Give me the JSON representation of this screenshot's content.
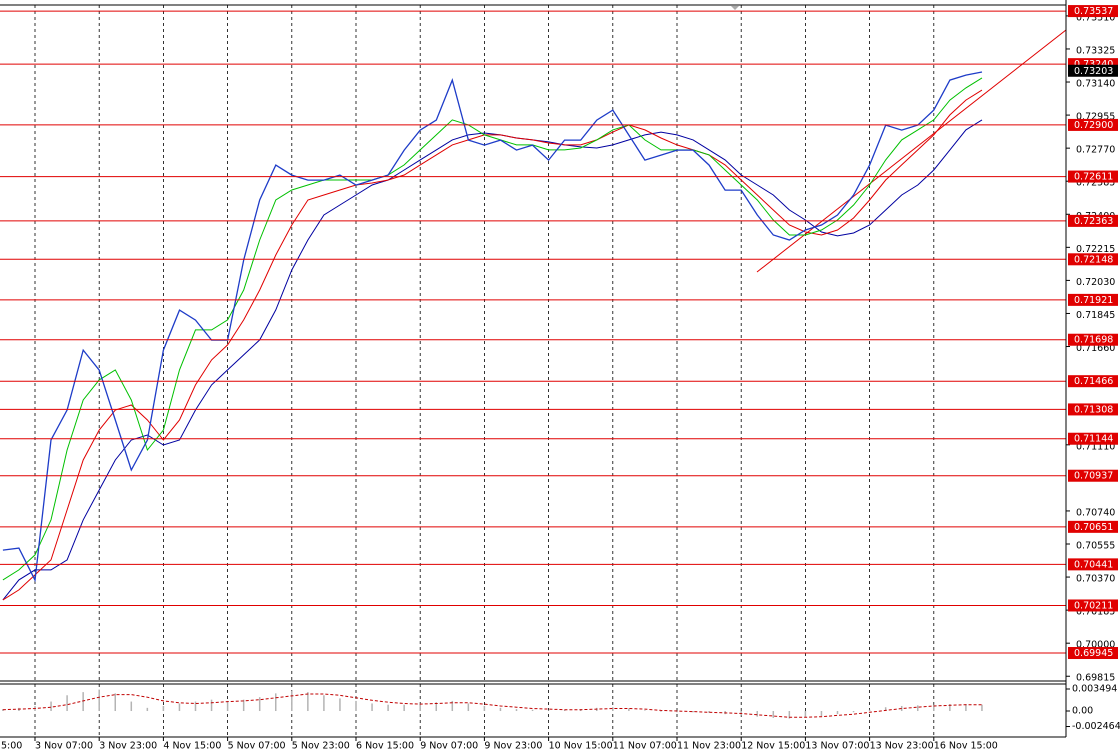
{
  "chart_data": [
    {
      "type": "line",
      "x": [
        "5:00",
        null,
        null,
        null,
        "3 Nov 07:00",
        null,
        null,
        null,
        "3 Nov 23:00",
        null,
        null,
        null,
        "4 Nov 15:00",
        null,
        null,
        null,
        "5 Nov 07:00",
        null,
        null,
        null,
        "5 Nov 23:00",
        null,
        null,
        null,
        "6 Nov 15:00",
        null,
        null,
        null,
        "9 Nov 07:00",
        null,
        null,
        null,
        "9 Nov 23:00",
        null,
        null,
        null,
        "10 Nov 15:00",
        null,
        null,
        null,
        "11 Nov 07:00",
        null,
        null,
        null,
        "11 Nov 23:00",
        null,
        null,
        null,
        "12 Nov 15:00",
        null,
        null,
        null,
        "13 Nov 07:00",
        null,
        null,
        null,
        "13 Nov 23:00",
        null,
        null,
        null,
        "16 Nov 15:00",
        null,
        null,
        null
      ],
      "series": [
        {
          "color": "#1e3cc8",
          "values": [
            null,
            null,
            0.70521,
            0.70532,
            0.70353,
            0.71137,
            0.71305,
            0.7164,
            0.71528,
            0.71249,
            0.70969,
            0.71137,
            0.7164,
            0.71864,
            0.71808,
            0.71696,
            0.71696,
            0.72144,
            0.7248,
            0.72675,
            0.72619,
            0.72591,
            0.72591,
            0.72619,
            0.72563,
            0.72591,
            0.72619,
            0.72759,
            0.72871,
            0.72927,
            0.73151,
            0.72815,
            0.72787,
            0.72815,
            0.72759,
            0.72787,
            0.72703,
            0.72815,
            0.72815,
            0.72927,
            0.72983,
            0.72843,
            0.72703,
            0.72731,
            0.72759,
            0.72759,
            0.72675,
            0.72535,
            0.72535,
            0.72396,
            0.72284,
            0.72256,
            0.72312,
            0.7234,
            0.72396,
            0.72508,
            0.72675,
            0.72899,
            0.72871,
            0.72899,
            0.72983,
            0.73151,
            0.73179,
            0.73196
          ]
        },
        {
          "color": "#00c000",
          "values": [
            null,
            null,
            0.70354,
            0.7041,
            0.70494,
            0.7069,
            0.71081,
            0.71361,
            0.71473,
            0.71529,
            0.71361,
            0.71081,
            0.71193,
            0.71529,
            0.71753,
            0.71753,
            0.71809,
            0.71976,
            0.72256,
            0.7248,
            0.72536,
            0.72564,
            0.72592,
            0.72592,
            0.72592,
            0.72592,
            0.7262,
            0.72676,
            0.7276,
            0.72844,
            0.72928,
            0.729,
            0.72844,
            0.72816,
            0.72788,
            0.72788,
            0.7276,
            0.7276,
            0.72771,
            0.72816,
            0.72872,
            0.729,
            0.72816,
            0.7276,
            0.7276,
            0.7276,
            0.72732,
            0.72648,
            0.72564,
            0.7248,
            0.72368,
            0.72284,
            0.72284,
            0.72312,
            0.72368,
            0.72452,
            0.72564,
            0.72704,
            0.72816,
            0.72872,
            0.72928,
            0.73039,
            0.73107,
            0.73163
          ]
        },
        {
          "color": "#e00000",
          "values": [
            null,
            null,
            0.70242,
            0.70298,
            0.70382,
            0.70466,
            0.70746,
            0.71025,
            0.71193,
            0.71305,
            0.71333,
            0.71249,
            0.71137,
            0.71249,
            0.71445,
            0.71585,
            0.71669,
            0.71809,
            0.71976,
            0.72172,
            0.7234,
            0.7248,
            0.72508,
            0.72536,
            0.72564,
            0.72575,
            0.72592,
            0.7262,
            0.72676,
            0.72732,
            0.72788,
            0.72816,
            0.72844,
            0.72844,
            0.72827,
            0.72816,
            0.72799,
            0.72788,
            0.72788,
            0.72816,
            0.7286,
            0.729,
            0.72872,
            0.72827,
            0.72788,
            0.7276,
            0.72732,
            0.72676,
            0.72592,
            0.72508,
            0.72424,
            0.7234,
            0.72301,
            0.72284,
            0.72312,
            0.72379,
            0.7248,
            0.72592,
            0.72676,
            0.7276,
            0.72844,
            0.72956,
            0.73039,
            0.73095
          ]
        },
        {
          "color": "#0000a0",
          "values": [
            null,
            null,
            0.70242,
            0.70354,
            0.7041,
            0.7041,
            0.70466,
            0.7069,
            0.70857,
            0.71025,
            0.71137,
            0.71165,
            0.71109,
            0.71137,
            0.71305,
            0.71445,
            0.71529,
            0.71613,
            0.71697,
            0.71865,
            0.72088,
            0.72256,
            0.72396,
            0.72452,
            0.72508,
            0.72564,
            0.72592,
            0.72648,
            0.72704,
            0.7276,
            0.72816,
            0.72844,
            0.72855,
            0.72844,
            0.72827,
            0.72816,
            0.72805,
            0.72788,
            0.72777,
            0.72771,
            0.72788,
            0.72816,
            0.72844,
            0.7286,
            0.72844,
            0.72816,
            0.7276,
            0.72704,
            0.7262,
            0.72564,
            0.72508,
            0.72424,
            0.72368,
            0.72301,
            0.72279,
            0.72295,
            0.7234,
            0.72424,
            0.72508,
            0.72564,
            0.72648,
            0.7276,
            0.72872,
            0.72928
          ]
        }
      ],
      "ylim": [
        0.69794,
        0.73571
      ],
      "yticks": [
        {
          "value": 0.7351,
          "label": "0.73510"
        },
        0.73325,
        {
          "value": 0.7314,
          "label": "0.73140"
        },
        0.72955,
        {
          "value": 0.7277,
          "label": "0.72770"
        },
        0.72585,
        {
          "value": 0.724,
          "label": "0.72400"
        },
        0.72215,
        {
          "value": 0.7203,
          "label": "0.72030"
        },
        0.71845,
        {
          "value": 0.7166,
          "label": "0.71660"
        },
        {
          "value": 0.7111,
          "label": "0.71110"
        },
        {
          "value": 0.7074,
          "label": "0.70740"
        },
        0.70555,
        {
          "value": 0.7037,
          "label": "0.70370"
        },
        0.70185,
        {
          "value": 0.7,
          "label": "0.70000"
        },
        0.69815
      ],
      "levels": [
        0.73537,
        {
          "value": 0.7324,
          "label": "0.73240"
        },
        {
          "value": 0.729,
          "label": "0.72900"
        },
        0.72611,
        0.72363,
        0.72148,
        0.71921,
        0.71698,
        0.71466,
        0.71308,
        0.71144,
        0.70937,
        0.70651,
        0.70441,
        0.70211,
        0.69945
      ],
      "level_color": "#e00000",
      "current_price": 0.73203,
      "grid": true
    },
    {
      "type": "bar",
      "color": "#b4b4b4",
      "values": [
        null,
        null,
        0.0003,
        0.0005,
        0.0008,
        0.0015,
        0.0025,
        0.003,
        0.0034,
        0.0028,
        0.0015,
        0.0005,
        0.0008,
        0.0012,
        0.0015,
        0.0018,
        0.0016,
        0.0018,
        0.0022,
        0.0028,
        0.0032,
        0.003,
        0.0025,
        0.002,
        0.0016,
        0.0012,
        0.001,
        0.001,
        0.0012,
        0.0014,
        0.0016,
        0.0012,
        0.0008,
        0.0005,
        0.0003,
        0.0002,
        0.0001,
        0.0002,
        0.0003,
        0.0005,
        0.0006,
        0.0004,
        0.0001,
        -0.0001,
        -0.0002,
        -0.0002,
        -0.0003,
        -0.0005,
        -0.0007,
        -0.0009,
        -0.0011,
        -0.0012,
        -0.001,
        -0.0008,
        -0.0005,
        -0.0002,
        0.0002,
        0.0006,
        0.0008,
        0.0009,
        0.001,
        0.0011,
        0.0011,
        0.001
      ],
      "signal": {
        "color": "#c00000",
        "values": [
          null,
          null,
          0.0002,
          0.0003,
          0.0004,
          0.0006,
          0.001,
          0.0016,
          0.0022,
          0.0026,
          0.0026,
          0.0022,
          0.0016,
          0.0013,
          0.0012,
          0.0013,
          0.0015,
          0.0016,
          0.0018,
          0.0021,
          0.0024,
          0.0027,
          0.0027,
          0.0025,
          0.0021,
          0.0017,
          0.0014,
          0.0012,
          0.0011,
          0.0012,
          0.0013,
          0.0013,
          0.0011,
          0.0008,
          0.0006,
          0.0004,
          0.0003,
          0.0002,
          0.0002,
          0.0003,
          0.0004,
          0.0004,
          0.0003,
          0.0001,
          0,
          -0.0001,
          -0.0002,
          -0.0003,
          -0.0004,
          -0.0006,
          -0.0008,
          -0.001,
          -0.001,
          -0.0009,
          -0.0007,
          -0.0005,
          -0.0002,
          0.0001,
          0.0004,
          0.0006,
          0.0008,
          0.0009,
          0.001,
          0.001
        ]
      },
      "ylim": [
        -0.00397,
        0.00429
      ],
      "yticks": [
        0.003494,
        {
          "value": 0,
          "label": "0.00"
        },
        -0.002464
      ]
    }
  ]
}
